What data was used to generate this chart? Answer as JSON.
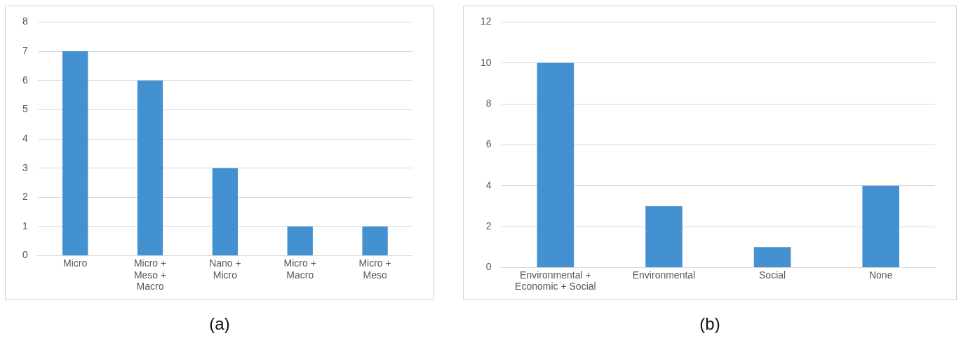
{
  "chart_data": [
    {
      "type": "bar",
      "categories": [
        "Micro",
        "Micro + Meso + Macro",
        "Nano + Micro",
        "Micro + Macro",
        "Micro + Meso"
      ],
      "values": [
        7,
        6,
        3,
        1,
        1
      ],
      "color": "#4391d0",
      "ylim": [
        0,
        8
      ],
      "yticks": [
        0,
        1,
        2,
        3,
        4,
        5,
        6,
        7,
        8
      ],
      "grid": "y",
      "legend": false,
      "annotations": [
        "(a)"
      ]
    },
    {
      "type": "bar",
      "categories": [
        "Environmental + Economic + Social",
        "Environmental",
        "Social",
        "None"
      ],
      "values": [
        10,
        3,
        1,
        4
      ],
      "color": "#4391d0",
      "ylim": [
        0,
        12
      ],
      "yticks": [
        0,
        2,
        4,
        6,
        8,
        10,
        12
      ],
      "grid": "y",
      "legend": false,
      "annotations": [
        "(b)"
      ]
    }
  ]
}
